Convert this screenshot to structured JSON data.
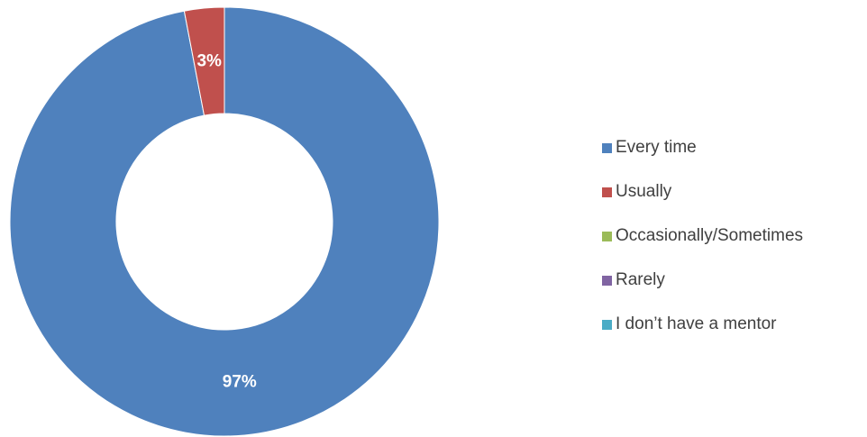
{
  "chart_data": {
    "type": "pie",
    "variant": "donut",
    "title": "",
    "categories": [
      "Every time",
      "Usually",
      "Occasionally/Sometimes",
      "Rarely",
      "I don’t have a mentor"
    ],
    "values": [
      97,
      3,
      0,
      0,
      0
    ],
    "data_labels": [
      "97%",
      "3%",
      "",
      "",
      ""
    ],
    "colors": [
      "#4F81BD",
      "#C0504D",
      "#9BBB59",
      "#8064A2",
      "#4BACC6"
    ],
    "legend_position": "right"
  },
  "legend": {
    "items": [
      {
        "label": "Every time",
        "color": "#4F81BD"
      },
      {
        "label": "Usually",
        "color": "#C0504D"
      },
      {
        "label": "Occasionally/Sometimes",
        "color": "#9BBB59"
      },
      {
        "label": "Rarely",
        "color": "#8064A2"
      },
      {
        "label": "I don’t have a mentor",
        "color": "#4BACC6"
      }
    ]
  }
}
